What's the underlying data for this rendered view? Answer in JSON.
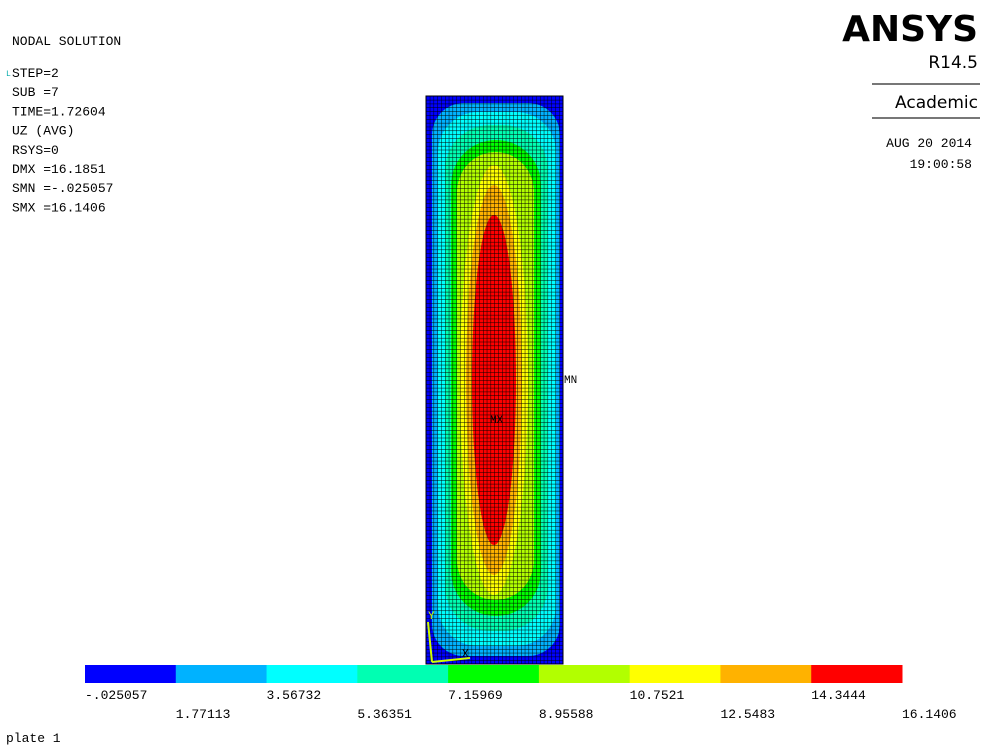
{
  "header": {
    "title": "NODAL SOLUTION",
    "corner_mark": "L"
  },
  "info": [
    "STEP=2",
    "SUB =7",
    "TIME=1.72604",
    "UZ       (AVG)",
    "RSYS=0",
    "DMX =16.1851",
    "SMN =-.025057",
    "SMX =16.1406"
  ],
  "logo": {
    "name": "ANSYS",
    "release": "R14.5",
    "edition": "Academic"
  },
  "timestamp": {
    "date": "AUG 20 2014",
    "time": "19:00:58"
  },
  "plot": {
    "min_label": "MN",
    "max_label": "MX",
    "axis_y": "Y",
    "axis_x": "X"
  },
  "legend": {
    "labels": [
      "-.025057",
      "1.77113",
      "3.56732",
      "5.36351",
      "7.15969",
      "8.95588",
      "10.7521",
      "12.5483",
      "14.3444",
      "16.1406"
    ],
    "colors": [
      "#0000ff",
      "#00b2ff",
      "#00ffff",
      "#00ffb2",
      "#00ff00",
      "#b2ff00",
      "#ffff00",
      "#ffb200",
      "#ff0000"
    ]
  },
  "footer": {
    "caption": "plate 1"
  }
}
